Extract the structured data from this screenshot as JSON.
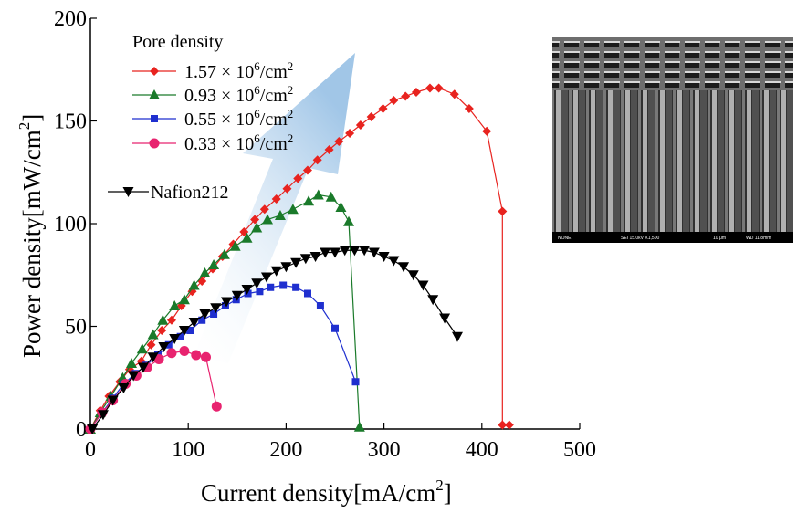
{
  "chart_data": {
    "type": "line",
    "xlabel": "Current density[mA/cm",
    "xlabel_sup": "2",
    "xlabel_tail": "]",
    "ylabel": "Power density[mW/cm",
    "ylabel_sup": "2",
    "ylabel_tail": "]",
    "xlim": [
      0,
      500
    ],
    "ylim": [
      0,
      200
    ],
    "xticks": [
      "0",
      "100",
      "200",
      "300",
      "400",
      "500"
    ],
    "yticks": [
      "0",
      "50",
      "100",
      "150",
      "200"
    ],
    "xtick_values": [
      0,
      100,
      200,
      300,
      400,
      500
    ],
    "ytick_values": [
      0,
      50,
      100,
      150,
      200
    ],
    "legend_title": "Pore density",
    "grid": false,
    "series": [
      {
        "name": "1.57",
        "name_mid": " × 10",
        "name_exp": "6",
        "name_tail": "/cm",
        "name_sup": "2",
        "color": "#e8231f",
        "marker": "diamond",
        "points": [
          [
            0,
            0
          ],
          [
            10,
            9
          ],
          [
            19,
            16
          ],
          [
            30,
            23
          ],
          [
            40,
            29
          ],
          [
            52,
            33
          ],
          [
            62,
            41
          ],
          [
            73,
            48
          ],
          [
            83,
            53
          ],
          [
            93,
            60
          ],
          [
            104,
            67
          ],
          [
            114,
            72
          ],
          [
            125,
            78
          ],
          [
            135,
            84
          ],
          [
            146,
            90
          ],
          [
            157,
            96
          ],
          [
            168,
            102
          ],
          [
            178,
            107
          ],
          [
            190,
            112
          ],
          [
            201,
            117
          ],
          [
            212,
            122
          ],
          [
            222,
            126
          ],
          [
            232,
            131
          ],
          [
            244,
            136
          ],
          [
            254,
            140
          ],
          [
            265,
            144
          ],
          [
            276,
            148
          ],
          [
            287,
            152
          ],
          [
            299,
            156
          ],
          [
            310,
            160
          ],
          [
            322,
            162
          ],
          [
            333,
            164
          ],
          [
            347,
            166
          ],
          [
            356,
            166
          ],
          [
            372,
            163
          ],
          [
            387,
            156
          ],
          [
            405,
            145
          ],
          [
            421,
            106
          ],
          [
            421,
            2
          ],
          [
            428,
            2
          ]
        ]
      },
      {
        "name": "0.93",
        "name_mid": " × 10",
        "name_exp": "6",
        "name_tail": "/cm",
        "name_sup": "2",
        "color": "#1a7a2a",
        "marker": "triangle",
        "points": [
          [
            0,
            0
          ],
          [
            10,
            8
          ],
          [
            21,
            16
          ],
          [
            33,
            25
          ],
          [
            42,
            32
          ],
          [
            53,
            39
          ],
          [
            64,
            46
          ],
          [
            74,
            53
          ],
          [
            86,
            60
          ],
          [
            96,
            63
          ],
          [
            106,
            70
          ],
          [
            117,
            76
          ],
          [
            126,
            80
          ],
          [
            137,
            85
          ],
          [
            148,
            89
          ],
          [
            160,
            93
          ],
          [
            170,
            98
          ],
          [
            181,
            102
          ],
          [
            194,
            104
          ],
          [
            207,
            107
          ],
          [
            223,
            111
          ],
          [
            233,
            114
          ],
          [
            246,
            113
          ],
          [
            256,
            108
          ],
          [
            264,
            101
          ],
          [
            275,
            1
          ]
        ]
      },
      {
        "name": "0.55",
        "name_mid": " × 10",
        "name_exp": "6",
        "name_tail": "/cm",
        "name_sup": "2",
        "color": "#1f2fcf",
        "marker": "square",
        "points": [
          [
            0,
            0
          ],
          [
            12,
            8
          ],
          [
            23,
            15
          ],
          [
            34,
            22
          ],
          [
            46,
            27
          ],
          [
            57,
            31
          ],
          [
            69,
            36
          ],
          [
            80,
            41
          ],
          [
            92,
            45
          ],
          [
            102,
            48
          ],
          [
            114,
            53
          ],
          [
            126,
            56
          ],
          [
            138,
            60
          ],
          [
            149,
            63
          ],
          [
            161,
            66
          ],
          [
            173,
            67
          ],
          [
            184,
            69
          ],
          [
            197,
            70
          ],
          [
            210,
            69
          ],
          [
            222,
            66
          ],
          [
            235,
            60
          ],
          [
            250,
            49
          ],
          [
            271,
            23
          ]
        ]
      },
      {
        "name": "0.33",
        "name_mid": " × 10",
        "name_exp": "6",
        "name_tail": "/cm",
        "name_sup": "2",
        "color": "#e8236f",
        "marker": "circle",
        "points": [
          [
            0,
            0
          ],
          [
            12,
            8
          ],
          [
            23,
            14
          ],
          [
            36,
            22
          ],
          [
            47,
            26
          ],
          [
            58,
            30
          ],
          [
            70,
            34
          ],
          [
            83,
            37
          ],
          [
            96,
            38
          ],
          [
            108,
            36
          ],
          [
            118,
            35
          ],
          [
            129,
            11
          ]
        ]
      },
      {
        "name": "Nafion212",
        "color": "#000000",
        "marker": "triangle-down",
        "points": [
          [
            2,
            0
          ],
          [
            13,
            7
          ],
          [
            23,
            14
          ],
          [
            34,
            20
          ],
          [
            44,
            26
          ],
          [
            54,
            30
          ],
          [
            64,
            35
          ],
          [
            75,
            40
          ],
          [
            86,
            44
          ],
          [
            96,
            48
          ],
          [
            106,
            52
          ],
          [
            117,
            56
          ],
          [
            128,
            59
          ],
          [
            139,
            62
          ],
          [
            150,
            65
          ],
          [
            160,
            68
          ],
          [
            170,
            71
          ],
          [
            180,
            74
          ],
          [
            190,
            77
          ],
          [
            200,
            79
          ],
          [
            210,
            81
          ],
          [
            220,
            83
          ],
          [
            230,
            84
          ],
          [
            240,
            86
          ],
          [
            250,
            86
          ],
          [
            260,
            87
          ],
          [
            270,
            87
          ],
          [
            280,
            87
          ],
          [
            290,
            86
          ],
          [
            300,
            84
          ],
          [
            310,
            82
          ],
          [
            320,
            79
          ],
          [
            330,
            75
          ],
          [
            340,
            70
          ],
          [
            350,
            63
          ],
          [
            362,
            54
          ],
          [
            375,
            45
          ]
        ]
      }
    ]
  },
  "inset": {
    "label_left": "NONE",
    "label_center": "SEI    15.0kV    X1,500",
    "label_scale": "10 μm",
    "label_wd": "WD 11.8mm"
  }
}
